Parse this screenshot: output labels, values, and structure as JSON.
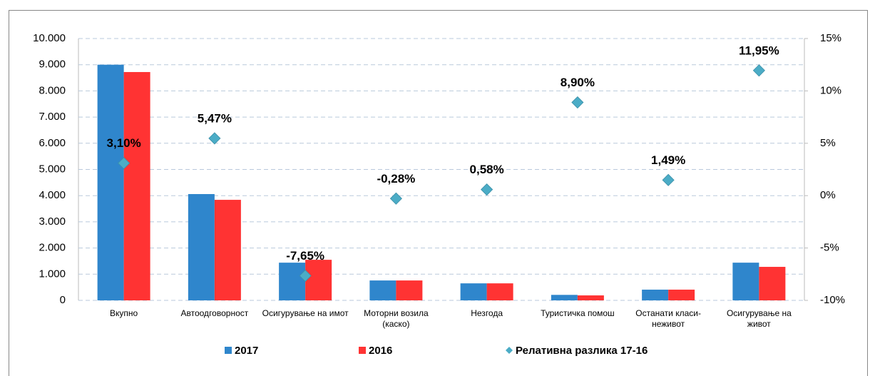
{
  "chart_data": {
    "type": "bar",
    "categories": [
      "Вкупно",
      "Автоодговорност",
      "Осигурување на имот",
      "Моторни возила (каско)",
      "Незгода",
      "Туристичка помош",
      "Останати класи-неживот",
      "Осигурување на живот"
    ],
    "series": [
      {
        "name": "2017",
        "color": "#2f86cc",
        "values": [
          9000,
          4060,
          1440,
          760,
          650,
          210,
          410,
          1440
        ]
      },
      {
        "name": "2016",
        "color": "#ff3333",
        "values": [
          8720,
          3840,
          1550,
          760,
          650,
          190,
          410,
          1280
        ]
      },
      {
        "name": "Релативна разлика 17-16",
        "type": "scatter",
        "axis": "y2",
        "color": "#4bacc6",
        "values": [
          3.1,
          5.47,
          -7.65,
          -0.28,
          0.58,
          8.9,
          1.49,
          11.95
        ],
        "value_labels": [
          "3,10%",
          "5,47%",
          "-7,65%",
          "-0,28%",
          "0,58%",
          "8,90%",
          "1,49%",
          "11,95%"
        ]
      }
    ],
    "ylim": [
      0,
      10000
    ],
    "yticks": [
      0,
      {
        "value": 1000,
        "label": "1.000"
      },
      {
        "value": 2000,
        "label": "2.000"
      },
      {
        "value": 3000,
        "label": "3.000"
      },
      {
        "value": 4000,
        "label": "4.000"
      },
      {
        "value": 5000,
        "label": "5.000"
      },
      {
        "value": 6000,
        "label": "6.000"
      },
      {
        "value": 7000,
        "label": "7.000"
      },
      {
        "value": 8000,
        "label": "8.000"
      },
      {
        "value": 9000,
        "label": "9.000"
      },
      {
        "value": 10000,
        "label": "10.000"
      }
    ],
    "y2lim": [
      -10,
      15
    ],
    "y2ticks": [
      {
        "value": -10,
        "label": "-10%"
      },
      {
        "value": -5,
        "label": "-5%"
      },
      {
        "value": 0,
        "label": "0%"
      },
      {
        "value": 5,
        "label": "5%"
      },
      {
        "value": 10,
        "label": "10%"
      },
      {
        "value": 15,
        "label": "15%"
      }
    ],
    "grid": true,
    "legend": "bottom"
  }
}
